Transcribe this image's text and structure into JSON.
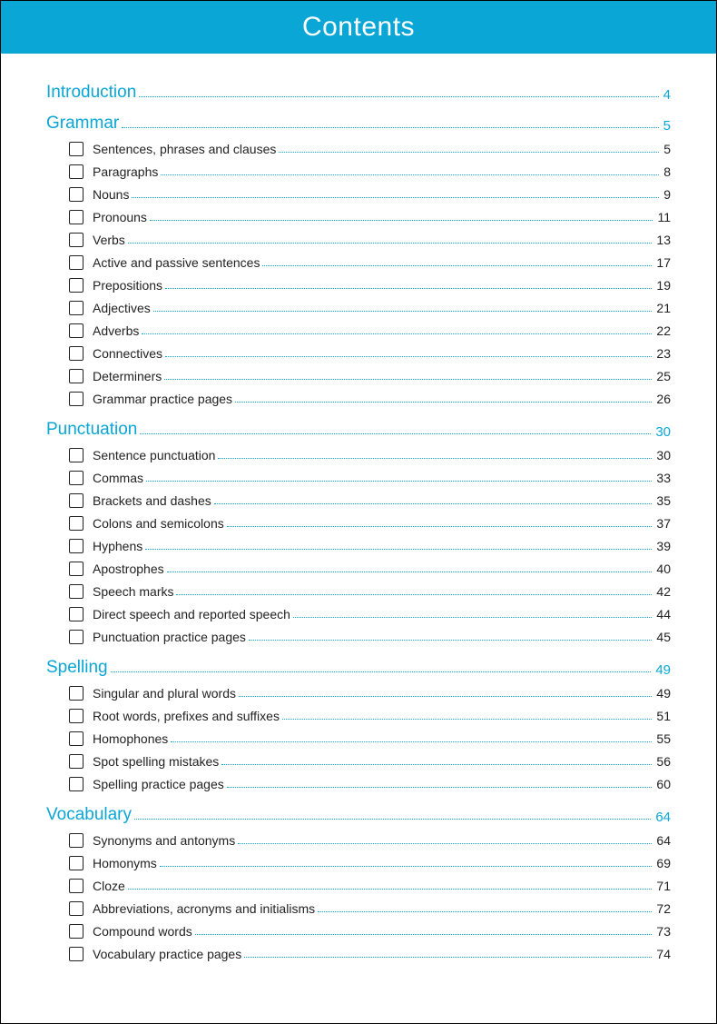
{
  "header": {
    "title": "Contents",
    "background_color": "#0aa6d6",
    "text_color": "#ffffff"
  },
  "colors": {
    "accent": "#0aa6d6",
    "text": "#222222",
    "dot_color": "#0aa6d6"
  },
  "sections": [
    {
      "label": "Introduction",
      "page": "4",
      "items": []
    },
    {
      "label": "Grammar",
      "page": "5",
      "items": [
        {
          "label": "Sentences, phrases and clauses",
          "page": "5"
        },
        {
          "label": "Paragraphs",
          "page": "8"
        },
        {
          "label": "Nouns",
          "page": "9"
        },
        {
          "label": "Pronouns",
          "page": "11"
        },
        {
          "label": "Verbs",
          "page": "13"
        },
        {
          "label": "Active and passive sentences",
          "page": "17"
        },
        {
          "label": "Prepositions",
          "page": "19"
        },
        {
          "label": "Adjectives",
          "page": "21"
        },
        {
          "label": "Adverbs",
          "page": "22"
        },
        {
          "label": "Connectives",
          "page": "23"
        },
        {
          "label": "Determiners",
          "page": "25"
        },
        {
          "label": "Grammar practice pages",
          "page": "26"
        }
      ]
    },
    {
      "label": "Punctuation",
      "page": "30",
      "items": [
        {
          "label": "Sentence punctuation",
          "page": "30"
        },
        {
          "label": "Commas",
          "page": "33"
        },
        {
          "label": "Brackets and dashes",
          "page": "35"
        },
        {
          "label": "Colons and semicolons",
          "page": "37"
        },
        {
          "label": "Hyphens",
          "page": "39"
        },
        {
          "label": "Apostrophes",
          "page": "40"
        },
        {
          "label": "Speech marks",
          "page": "42"
        },
        {
          "label": "Direct speech and reported speech",
          "page": "44"
        },
        {
          "label": "Punctuation practice pages",
          "page": "45"
        }
      ]
    },
    {
      "label": "Spelling",
      "page": "49",
      "items": [
        {
          "label": "Singular and plural words",
          "page": "49"
        },
        {
          "label": "Root words, prefixes and suffixes",
          "page": "51"
        },
        {
          "label": "Homophones",
          "page": "55"
        },
        {
          "label": "Spot spelling mistakes",
          "page": "56"
        },
        {
          "label": "Spelling practice pages",
          "page": "60"
        }
      ]
    },
    {
      "label": "Vocabulary",
      "page": "64",
      "items": [
        {
          "label": "Synonyms and antonyms",
          "page": "64"
        },
        {
          "label": "Homonyms",
          "page": "69"
        },
        {
          "label": "Cloze",
          "page": "71"
        },
        {
          "label": "Abbreviations, acronyms and initialisms",
          "page": "72"
        },
        {
          "label": "Compound words",
          "page": "73"
        },
        {
          "label": "Vocabulary practice pages",
          "page": "74"
        }
      ]
    }
  ]
}
